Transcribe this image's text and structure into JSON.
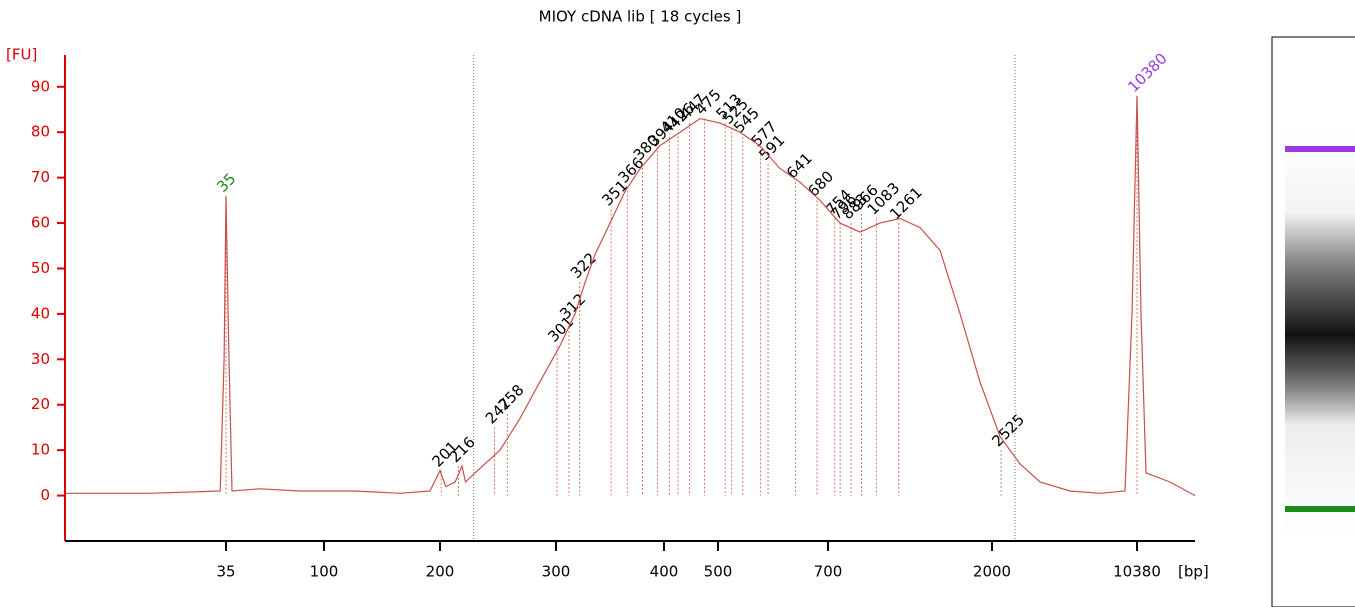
{
  "chart_data": {
    "type": "line",
    "title": "MIOY cDNA lib  [ 18 cycles ]",
    "y_label": "[FU]",
    "x_label": "[bp]",
    "ylim": [
      -10,
      97
    ],
    "yticks": [
      0,
      10,
      20,
      30,
      40,
      50,
      60,
      70,
      80,
      90
    ],
    "xlim": [
      10,
      15000
    ],
    "xticks": [
      35,
      100,
      200,
      300,
      400,
      500,
      700,
      2000,
      10380
    ],
    "color": "#c8504a",
    "axis_color": "#dd0000",
    "x": [
      10,
      23.2,
      34.1,
      34.7,
      35,
      37,
      39,
      57.5,
      84,
      126.7,
      165.5,
      191.4,
      200,
      205,
      213,
      219,
      222,
      234.5,
      251.7,
      269,
      286,
      303.7,
      317.6,
      327,
      336,
      350,
      364,
      378,
      396,
      429.6,
      466.7,
      503.6,
      540,
      576,
      613,
      649,
      685.5,
      795,
      954,
      1112,
      1271,
      1430,
      1588,
      1747,
      1905,
      2462,
      3618,
      4774,
      6508,
      8242,
      9687,
      10091,
      10380,
      10699,
      11097,
      13009,
      15000
    ],
    "values": [
      0.5,
      0.5,
      1,
      30,
      66,
      30,
      1,
      1.5,
      1,
      1,
      0.5,
      1,
      5.5,
      2,
      3,
      6.5,
      3,
      6,
      10,
      17,
      25,
      33,
      40,
      47,
      53,
      60,
      67,
      72,
      77,
      80,
      83,
      82,
      80,
      77,
      72,
      69,
      65,
      60,
      58,
      60,
      61,
      59,
      54,
      40,
      25,
      13,
      7,
      3,
      1,
      0.5,
      1,
      40,
      88,
      40,
      5,
      3,
      0
    ],
    "peaks": {
      "x": [
        35,
        201,
        216,
        247,
        258,
        301,
        312,
        322,
        351,
        366,
        380,
        394,
        410,
        426,
        447,
        475,
        513,
        525,
        545,
        577,
        591,
        641,
        680,
        754,
        796,
        883,
        966,
        1083,
        1261,
        2525,
        10380
      ],
      "values": [
        66,
        5.5,
        6.5,
        15,
        18,
        33,
        38,
        47,
        63,
        68,
        73,
        76,
        79,
        80,
        82,
        83,
        82,
        81,
        79,
        76,
        73,
        69,
        65,
        61,
        60,
        60,
        62,
        61,
        60,
        10,
        88
      ],
      "colors": [
        "#1a8a1a",
        "#000",
        "#000",
        "#000",
        "#000",
        "#000",
        "#000",
        "#000",
        "#000",
        "#000",
        "#000",
        "#000",
        "#000",
        "#000",
        "#000",
        "#000",
        "#000",
        "#000",
        "#000",
        "#000",
        "#000",
        "#000",
        "#000",
        "#000",
        "#000",
        "#000",
        "#000",
        "#000",
        "#000",
        "#000",
        "#9a3ae0"
      ]
    },
    "region_bounds": [
      229,
      3330
    ],
    "region_color": "#6a6ad0"
  }
}
